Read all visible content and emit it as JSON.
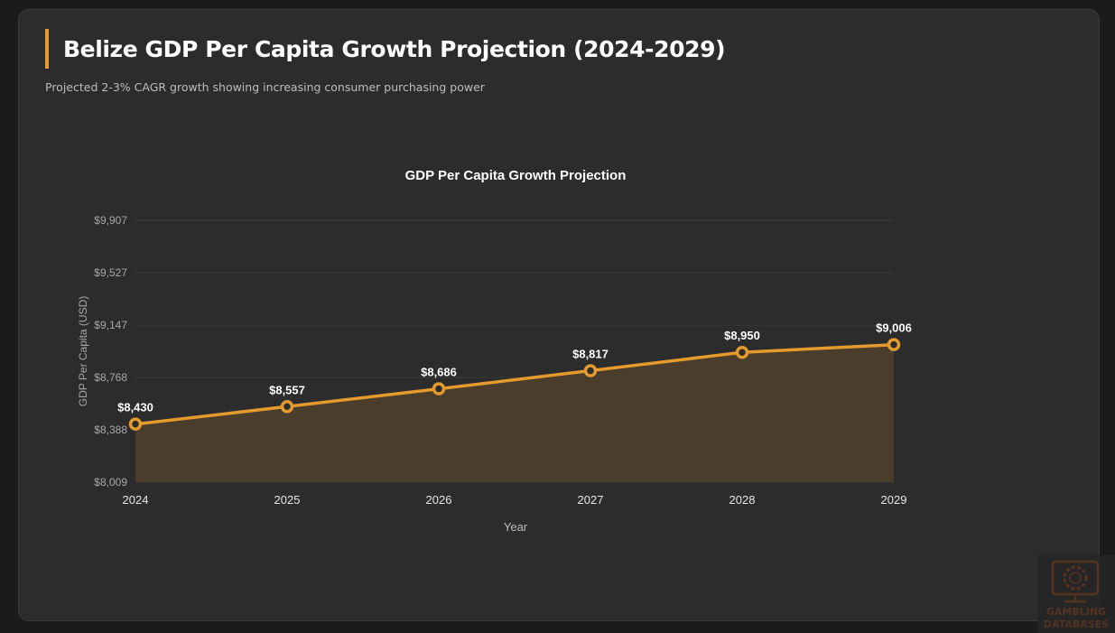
{
  "header": {
    "title": "Belize GDP Per Capita Growth Projection (2024-2029)",
    "subtitle": "Projected 2-3% CAGR growth showing increasing consumer purchasing power"
  },
  "colors": {
    "accent": "#e49a2c",
    "background": "#2c2c2c",
    "page_background": "#1b1b1b",
    "fill": "#4a3d2c",
    "grid": "#3a3a3a"
  },
  "chart_data": {
    "type": "line",
    "title": "GDP Per Capita Growth Projection",
    "xlabel": "Year",
    "ylabel": "GDP Per Capita (USD)",
    "categories": [
      "2024",
      "2025",
      "2026",
      "2027",
      "2028",
      "2029"
    ],
    "series": [
      {
        "name": "GDP Per Capita",
        "values": [
          8430,
          8557,
          8686,
          8817,
          8950,
          9006
        ],
        "labels": [
          "$8,430",
          "$8,557",
          "$8,686",
          "$8,817",
          "$8,950",
          "$9,006"
        ],
        "fill": true
      }
    ],
    "ylim": [
      8009,
      9907
    ],
    "yticks": [
      8009,
      8388,
      8768,
      9147,
      9527,
      9907
    ],
    "ytick_labels": [
      "$8,009",
      "$8,388",
      "$8,768",
      "$9,147",
      "$9,527",
      "$9,907"
    ],
    "grid": true,
    "legend": "none"
  },
  "watermark": {
    "line1": "GAMBLING",
    "line2": "DATABASES",
    "icon": "monitor-poker-chip-icon"
  }
}
